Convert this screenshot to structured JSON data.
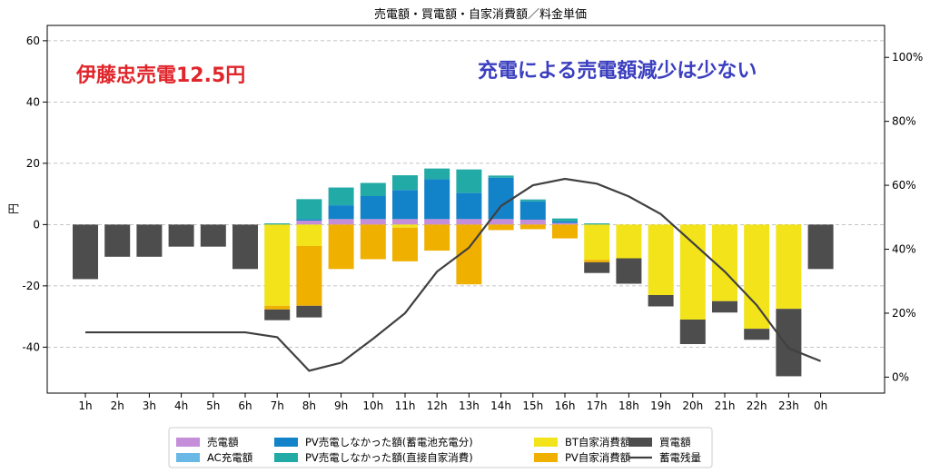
{
  "chart_data": {
    "type": "bar",
    "title": "売電額・買電額・自家消費額／料金単価",
    "ylabel": "円",
    "ylim": [
      -55,
      65
    ],
    "y_ticks": [
      60,
      40,
      20,
      0,
      -20,
      -40
    ],
    "y2lim": [
      -0.05,
      1.1
    ],
    "y2_ticks": [
      1.0,
      0.8,
      0.6,
      0.4,
      0.2,
      0.0
    ],
    "y2_tick_labels": [
      "100%",
      "80%",
      "60%",
      "40%",
      "20%",
      "0%"
    ],
    "grid": true,
    "legend_position": "bottom",
    "categories": [
      "1h",
      "2h",
      "3h",
      "4h",
      "5h",
      "6h",
      "7h",
      "8h",
      "9h",
      "10h",
      "11h",
      "12h",
      "13h",
      "14h",
      "15h",
      "16h",
      "17h",
      "18h",
      "19h",
      "20h",
      "21h",
      "22h",
      "23h",
      "0h"
    ],
    "series": [
      {
        "name": "売電額",
        "color": "#c58ed9",
        "stack": "pos",
        "values": [
          0,
          0,
          0,
          0,
          0,
          0,
          0,
          1.3,
          1.8,
          1.8,
          1.8,
          1.8,
          1.8,
          1.8,
          1.6,
          0.5,
          0,
          0,
          0,
          0,
          0,
          0,
          0,
          0
        ]
      },
      {
        "name": "AC充電額",
        "color": "#6ab8e6",
        "stack": "pos",
        "values": [
          0,
          0,
          0,
          0,
          0,
          0,
          0,
          0,
          0,
          0,
          0,
          0,
          0,
          0,
          0,
          0,
          0,
          0,
          0,
          0,
          0,
          0,
          0,
          0
        ]
      },
      {
        "name": "PV売電しなかった額(蓄電池充電分)",
        "color": "#1283c9",
        "stack": "pos",
        "values": [
          0,
          0,
          0,
          0,
          0,
          0,
          0,
          0.5,
          4.5,
          7.5,
          9.5,
          13,
          8.5,
          13.5,
          6,
          0.6,
          0,
          0,
          0,
          0,
          0,
          0,
          0,
          0
        ]
      },
      {
        "name": "PV売電しなかった額(直接自家消費)",
        "color": "#22aaa6",
        "stack": "pos",
        "values": [
          0,
          0,
          0,
          0,
          0,
          0,
          0.4,
          6.5,
          5.8,
          4.3,
          4.8,
          3.5,
          7.7,
          0.7,
          0.6,
          0.9,
          0.4,
          0,
          0,
          0,
          0,
          0,
          0,
          0
        ]
      },
      {
        "name": "BT自家消費額",
        "color": "#f2e31b",
        "stack": "neg",
        "values": [
          0,
          0,
          0,
          0,
          0,
          0,
          -26.5,
          -7,
          0,
          0,
          -1,
          0,
          0,
          0,
          0,
          0,
          -11.5,
          -11,
          -23,
          -31,
          -25,
          -34,
          -27.5,
          0
        ]
      },
      {
        "name": "PV自家消費額",
        "color": "#f0b000",
        "stack": "neg",
        "values": [
          0,
          0,
          0,
          0,
          0,
          0,
          -1.2,
          -19.5,
          -14.5,
          -11.3,
          -11,
          -8.5,
          -19.5,
          -1.8,
          -1.5,
          -4.5,
          -0.8,
          0,
          0,
          0,
          0,
          0,
          0,
          0
        ]
      },
      {
        "name": "買電額",
        "color": "#4d4d4d",
        "stack": "neg",
        "values": [
          -17.8,
          -10.5,
          -10.5,
          -7.2,
          -7.2,
          -14.5,
          -3.5,
          -3.8,
          0,
          0,
          0,
          0,
          0,
          0,
          0,
          0,
          -3.5,
          -8.3,
          -3.7,
          -8,
          -3.7,
          -3.6,
          -22,
          -14.5
        ]
      },
      {
        "name": "蓄電残量",
        "color": "#404040",
        "type": "line",
        "axis": "right",
        "values": [
          0.14,
          0.14,
          0.14,
          0.14,
          0.14,
          0.14,
          0.125,
          0.02,
          0.045,
          0.12,
          0.2,
          0.33,
          0.405,
          0.535,
          0.6,
          0.62,
          0.605,
          0.565,
          0.51,
          0.42,
          0.33,
          0.225,
          0.09,
          0.05
        ]
      }
    ],
    "annotations": [
      {
        "text": "伊藤忠売電12.5円",
        "color": "#e0252b"
      },
      {
        "text": "充電による売電額減少は少ない",
        "color": "#3b3fbf"
      }
    ]
  }
}
